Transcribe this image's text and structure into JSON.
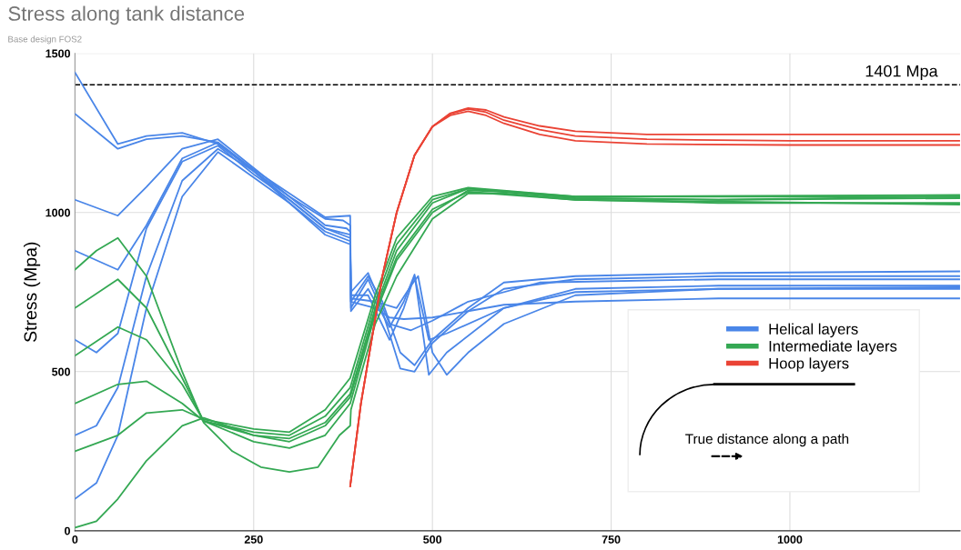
{
  "chart_data": {
    "type": "line",
    "title": "Stress along tank distance",
    "subtitle": "Base design FOS2",
    "ylabel": "Stress (Mpa)",
    "xlim": [
      0,
      1238
    ],
    "xticks": [
      0,
      250,
      500,
      750,
      1000
    ],
    "ylim": [
      0,
      1500
    ],
    "yticks": [
      0,
      500,
      1000,
      1500
    ],
    "grid": true,
    "legend": "bottom right",
    "marker": "none",
    "line_style": "solid",
    "ref_lines": [
      {
        "axis": "y",
        "value": 1401,
        "label": "1401 Mpa",
        "color": "#000000",
        "line_style": "dashed"
      }
    ],
    "annotations": [
      "True distance along a path"
    ],
    "series": [
      {
        "name": "Helical layers",
        "color": "#4a86e8",
        "x": [
          0,
          60,
          100,
          150,
          200,
          250,
          300,
          350,
          375,
          385,
          386,
          410,
          430,
          455,
          475,
          500,
          550,
          600,
          700,
          900,
          1238
        ],
        "values": [
          1440,
          1215,
          1240,
          1250,
          1215,
          1130,
          1050,
          980,
          975,
          960,
          720,
          800,
          720,
          560,
          520,
          600,
          700,
          780,
          800,
          810,
          815
        ]
      },
      {
        "color": "#4a86e8",
        "x": [
          0,
          60,
          100,
          150,
          200,
          250,
          300,
          350,
          385,
          386,
          410,
          440,
          470,
          500,
          550,
          650,
          900,
          1238
        ],
        "values": [
          1310,
          1200,
          1230,
          1240,
          1220,
          1135,
          1060,
          985,
          990,
          750,
          810,
          650,
          630,
          660,
          720,
          780,
          790,
          790
        ]
      },
      {
        "color": "#4a86e8",
        "x": [
          0,
          60,
          100,
          150,
          200,
          250,
          300,
          350,
          380,
          385,
          386,
          410,
          430,
          455,
          475,
          500,
          550,
          600,
          700,
          900,
          1238
        ],
        "values": [
          1040,
          990,
          1080,
          1200,
          1230,
          1140,
          1050,
          960,
          950,
          940,
          700,
          790,
          690,
          510,
          500,
          590,
          690,
          760,
          790,
          800,
          800
        ]
      },
      {
        "color": "#4a86e8",
        "x": [
          0,
          60,
          100,
          150,
          200,
          250,
          300,
          350,
          385,
          386,
          410,
          440,
          460,
          475,
          495,
          520,
          600,
          700,
          900,
          1238
        ],
        "values": [
          880,
          820,
          960,
          1170,
          1220,
          1130,
          1040,
          950,
          920,
          690,
          760,
          640,
          720,
          805,
          490,
          560,
          700,
          750,
          760,
          765
        ]
      },
      {
        "color": "#4a86e8",
        "x": [
          0,
          30,
          60,
          100,
          150,
          200,
          250,
          300,
          350,
          385,
          386,
          420,
          440,
          460,
          500,
          550,
          600,
          700,
          900,
          1238
        ],
        "values": [
          600,
          560,
          620,
          950,
          1160,
          1210,
          1120,
          1040,
          950,
          930,
          720,
          700,
          670,
          665,
          670,
          690,
          710,
          720,
          730,
          730
        ]
      },
      {
        "color": "#4a86e8",
        "x": [
          0,
          30,
          60,
          100,
          150,
          200,
          250,
          300,
          350,
          385,
          386,
          410,
          440,
          460,
          475,
          495,
          520,
          600,
          700,
          900,
          1238
        ],
        "values": [
          300,
          330,
          450,
          800,
          1100,
          1200,
          1130,
          1030,
          940,
          910,
          740,
          740,
          600,
          700,
          800,
          600,
          620,
          700,
          760,
          770,
          770
        ]
      },
      {
        "color": "#4a86e8",
        "x": [
          0,
          30,
          60,
          100,
          150,
          200,
          250,
          300,
          350,
          385,
          386,
          420,
          450,
          470,
          480,
          500,
          520,
          550,
          600,
          700,
          900,
          1238
        ],
        "values": [
          100,
          150,
          300,
          700,
          1050,
          1190,
          1110,
          1030,
          930,
          900,
          730,
          720,
          700,
          770,
          800,
          560,
          490,
          560,
          650,
          740,
          760,
          760
        ]
      },
      {
        "name": "Intermediate layers",
        "color": "#34a853",
        "x": [
          0,
          30,
          60,
          100,
          150,
          180,
          220,
          260,
          300,
          340,
          370,
          385,
          386,
          420,
          450,
          500,
          550,
          600,
          700,
          900,
          1238
        ],
        "values": [
          820,
          880,
          920,
          800,
          500,
          340,
          250,
          200,
          185,
          200,
          300,
          330,
          380,
          650,
          800,
          980,
          1060,
          1060,
          1040,
          1030,
          1030
        ]
      },
      {
        "color": "#34a853",
        "x": [
          0,
          60,
          100,
          150,
          180,
          250,
          300,
          350,
          385,
          420,
          450,
          500,
          550,
          600,
          700,
          900,
          1238
        ],
        "values": [
          700,
          790,
          700,
          480,
          345,
          280,
          260,
          300,
          400,
          680,
          850,
          1000,
          1070,
          1065,
          1045,
          1040,
          1045
        ]
      },
      {
        "color": "#34a853",
        "x": [
          0,
          60,
          100,
          150,
          180,
          250,
          300,
          350,
          385,
          420,
          450,
          500,
          550,
          600,
          700,
          900,
          1238
        ],
        "values": [
          550,
          640,
          600,
          460,
          345,
          300,
          290,
          340,
          430,
          700,
          880,
          1030,
          1075,
          1065,
          1045,
          1040,
          1050
        ]
      },
      {
        "color": "#34a853",
        "x": [
          0,
          60,
          100,
          150,
          180,
          250,
          300,
          350,
          385,
          420,
          450,
          500,
          550,
          700,
          1238
        ],
        "values": [
          400,
          460,
          470,
          400,
          345,
          310,
          300,
          360,
          450,
          720,
          900,
          1040,
          1075,
          1050,
          1055
        ]
      },
      {
        "color": "#34a853",
        "x": [
          0,
          60,
          100,
          150,
          180,
          250,
          300,
          350,
          385,
          420,
          450,
          500,
          550,
          700,
          1238
        ],
        "values": [
          250,
          300,
          370,
          380,
          350,
          320,
          310,
          380,
          480,
          740,
          920,
          1050,
          1078,
          1050,
          1050
        ]
      },
      {
        "color": "#34a853",
        "x": [
          0,
          30,
          60,
          100,
          150,
          180,
          250,
          300,
          350,
          385,
          420,
          450,
          500,
          550,
          700,
          1238
        ],
        "values": [
          10,
          30,
          100,
          220,
          330,
          355,
          300,
          280,
          330,
          420,
          690,
          860,
          1010,
          1065,
          1040,
          1025
        ]
      },
      {
        "name": "Hoop layers",
        "color": "#ea4335",
        "x": [
          385,
          400,
          430,
          450,
          475,
          500,
          525,
          550,
          575,
          600,
          650,
          700,
          800,
          1000,
          1238
        ],
        "values": [
          140,
          400,
          800,
          1000,
          1180,
          1270,
          1310,
          1325,
          1315,
          1290,
          1260,
          1240,
          1230,
          1225,
          1225
        ]
      },
      {
        "color": "#ea4335",
        "x": [
          385,
          400,
          430,
          450,
          475,
          500,
          525,
          550,
          575,
          600,
          650,
          700,
          800,
          1000,
          1238
        ],
        "values": [
          140,
          400,
          800,
          1000,
          1180,
          1270,
          1305,
          1318,
          1305,
          1280,
          1245,
          1225,
          1215,
          1212,
          1212
        ]
      },
      {
        "color": "#ea4335",
        "x": [
          385,
          400,
          430,
          450,
          475,
          500,
          525,
          550,
          575,
          600,
          650,
          700,
          800,
          1000,
          1238
        ],
        "values": [
          140,
          400,
          800,
          1000,
          1180,
          1270,
          1312,
          1328,
          1322,
          1300,
          1272,
          1255,
          1245,
          1245,
          1245
        ]
      }
    ]
  }
}
